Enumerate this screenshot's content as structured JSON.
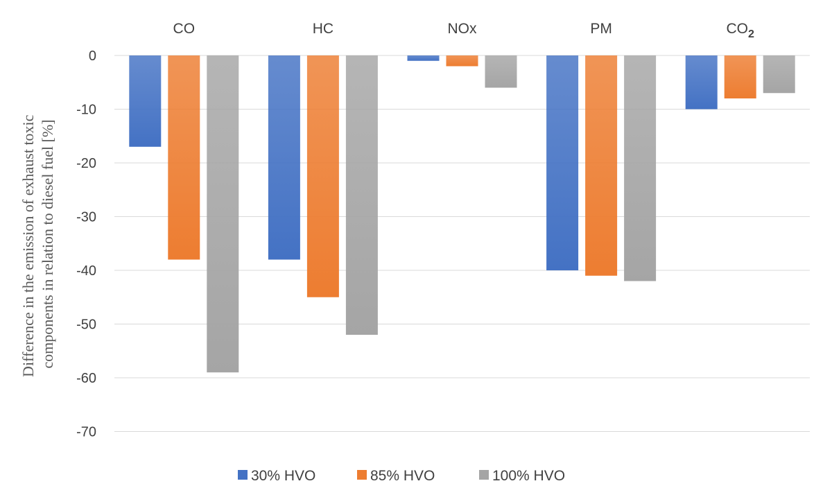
{
  "chart_data": {
    "type": "bar",
    "categories": [
      "CO",
      "HC",
      "NOx",
      "PM",
      "CO"
    ],
    "category_subscripts": [
      "",
      "",
      "",
      "",
      "2"
    ],
    "series": [
      {
        "name": "30% HVO",
        "values": [
          -17,
          -38,
          -1,
          -40,
          -10
        ],
        "color": "#4472C4"
      },
      {
        "name": "85% HVO",
        "values": [
          -38,
          -45,
          -2,
          -41,
          -8
        ],
        "color": "#ED7D31"
      },
      {
        "name": "100% HVO",
        "values": [
          -59,
          -52,
          -6,
          -42,
          -7
        ],
        "color": "#A5A5A5"
      }
    ],
    "ylabel_lines": [
      "Difference in the emission of exhaust toxic",
      "components in relation to diesel fuel [%]"
    ],
    "ylim": [
      -70,
      0
    ],
    "yticks": [
      0,
      -10,
      -20,
      -30,
      -40,
      -50,
      -60,
      -70
    ],
    "grid": true,
    "legend": "bottom",
    "category_labels_position": "top"
  }
}
